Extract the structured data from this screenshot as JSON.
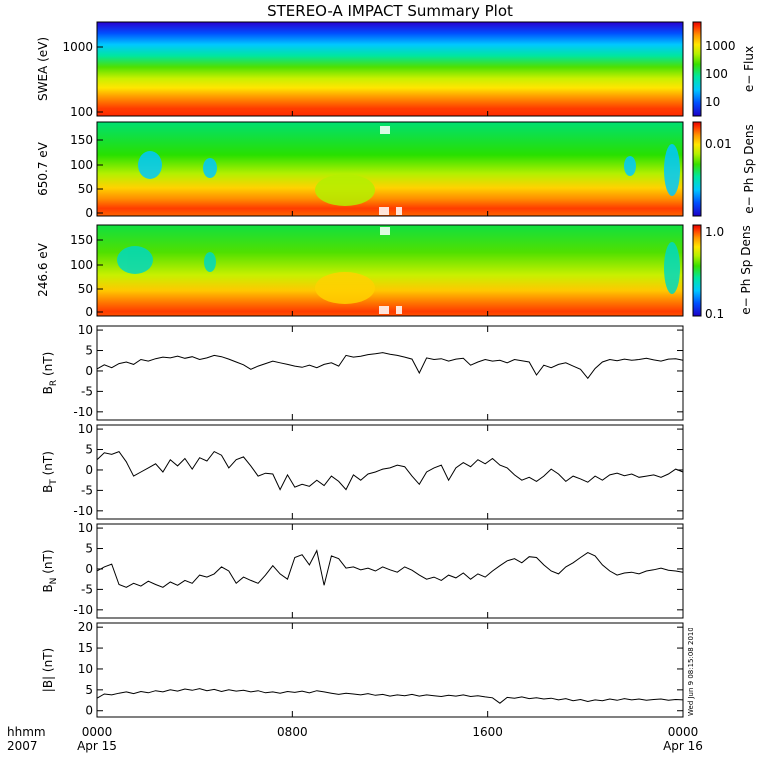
{
  "title": "STEREO-A IMPACT Summary Plot",
  "time_axis": {
    "unit_label": "hhmm",
    "year_label": "2007",
    "ticks": [
      {
        "t": 0,
        "time": "0000",
        "date": "Apr 15"
      },
      {
        "t": 8,
        "time": "0800",
        "date": ""
      },
      {
        "t": 16,
        "time": "1600",
        "date": ""
      },
      {
        "t": 24,
        "time": "0000",
        "date": "Apr 16"
      }
    ]
  },
  "stamp_text": "Wed Jun 9 08:15:08 2010",
  "spectrogram_panels": [
    {
      "ylabel": "SWEA (eV)",
      "scale": "log",
      "yticks": [
        "1000",
        "100"
      ],
      "colorbar_label": "e− Flux",
      "colorbar_ticks": [
        "1000",
        "100",
        "10"
      ]
    },
    {
      "ylabel": "650.7 eV",
      "scale": "linear",
      "yticks": [
        "150",
        "100",
        "50",
        "0"
      ],
      "colorbar_label": "e− Ph Sp Dens",
      "colorbar_ticks": [
        "0.01"
      ]
    },
    {
      "ylabel": "246.6 eV",
      "scale": "linear",
      "yticks": [
        "150",
        "100",
        "50",
        "0"
      ],
      "colorbar_label": "e− Ph Sp Dens",
      "colorbar_ticks": [
        "1.0",
        "0.1"
      ]
    }
  ],
  "colors": {
    "line": "#000000",
    "spectrum": [
      "#1e00c8",
      "#0050ff",
      "#00c8ff",
      "#00e6a0",
      "#38e000",
      "#b4f000",
      "#ffe600",
      "#ff9600",
      "#ff3c00",
      "#e60000"
    ]
  },
  "chart_data": [
    {
      "type": "line",
      "ylabel_main": "B",
      "ylabel_sub": "R",
      "ylabel_unit": " (nT)",
      "ylim": [
        -12,
        11
      ],
      "yticks": [
        -10,
        -5,
        0,
        5,
        10
      ],
      "x": [
        0,
        0.3,
        0.6,
        0.9,
        1.2,
        1.5,
        1.8,
        2.1,
        2.4,
        2.7,
        3.0,
        3.3,
        3.6,
        3.9,
        4.2,
        4.5,
        4.8,
        5.1,
        5.4,
        5.7,
        6.0,
        6.3,
        6.6,
        6.9,
        7.2,
        7.5,
        7.8,
        8.1,
        8.4,
        8.7,
        9.0,
        9.3,
        9.6,
        9.9,
        10.2,
        10.5,
        10.8,
        11.1,
        11.4,
        11.7,
        12.0,
        12.3,
        12.6,
        12.9,
        13.2,
        13.5,
        13.8,
        14.1,
        14.4,
        14.7,
        15.0,
        15.3,
        15.6,
        15.9,
        16.2,
        16.5,
        16.8,
        17.1,
        17.4,
        17.7,
        18.0,
        18.3,
        18.6,
        18.9,
        19.2,
        19.5,
        19.8,
        20.1,
        20.4,
        20.7,
        21.0,
        21.3,
        21.6,
        21.9,
        22.2,
        22.5,
        22.8,
        23.1,
        23.4,
        23.7,
        24.0
      ],
      "y": [
        0.5,
        1.5,
        0.8,
        1.8,
        2.2,
        1.6,
        2.8,
        2.4,
        3.0,
        3.4,
        3.2,
        3.6,
        3.1,
        3.5,
        2.8,
        3.2,
        3.8,
        3.5,
        2.9,
        2.2,
        1.5,
        0.4,
        1.2,
        1.8,
        2.4,
        2.0,
        1.6,
        1.2,
        0.9,
        1.4,
        0.8,
        1.6,
        2.0,
        1.2,
        3.8,
        3.4,
        3.6,
        4.0,
        4.2,
        4.5,
        4.1,
        3.8,
        3.4,
        2.9,
        -0.5,
        3.2,
        2.8,
        3.0,
        2.4,
        2.9,
        3.1,
        1.4,
        2.2,
        2.8,
        2.4,
        2.6,
        2.0,
        2.8,
        2.5,
        2.2,
        -1.0,
        1.4,
        0.8,
        1.6,
        2.0,
        1.2,
        0.4,
        -1.8,
        0.6,
        2.2,
        2.8,
        2.5,
        2.9,
        2.6,
        2.8,
        3.1,
        2.7,
        2.4,
        2.9,
        3.0,
        2.6
      ]
    },
    {
      "type": "line",
      "ylabel_main": "B",
      "ylabel_sub": "T",
      "ylabel_unit": " (nT)",
      "ylim": [
        -12,
        11
      ],
      "yticks": [
        -10,
        -5,
        0,
        5,
        10
      ],
      "x": [
        0,
        0.3,
        0.6,
        0.9,
        1.2,
        1.5,
        1.8,
        2.1,
        2.4,
        2.7,
        3.0,
        3.3,
        3.6,
        3.9,
        4.2,
        4.5,
        4.8,
        5.1,
        5.4,
        5.7,
        6.0,
        6.3,
        6.6,
        6.9,
        7.2,
        7.5,
        7.8,
        8.1,
        8.4,
        8.7,
        9.0,
        9.3,
        9.6,
        9.9,
        10.2,
        10.5,
        10.8,
        11.1,
        11.4,
        11.7,
        12.0,
        12.3,
        12.6,
        12.9,
        13.2,
        13.5,
        13.8,
        14.1,
        14.4,
        14.7,
        15.0,
        15.3,
        15.6,
        15.9,
        16.2,
        16.5,
        16.8,
        17.1,
        17.4,
        17.7,
        18.0,
        18.3,
        18.6,
        18.9,
        19.2,
        19.5,
        19.8,
        20.1,
        20.4,
        20.7,
        21.0,
        21.3,
        21.6,
        21.9,
        22.2,
        22.5,
        22.8,
        23.1,
        23.4,
        23.7,
        24.0
      ],
      "y": [
        2.5,
        4.2,
        3.8,
        4.5,
        2.0,
        -1.5,
        -0.5,
        0.5,
        1.5,
        -0.5,
        2.5,
        1.0,
        2.8,
        0.2,
        3.0,
        2.2,
        4.5,
        3.6,
        0.5,
        2.5,
        3.2,
        1.0,
        -1.5,
        -0.8,
        -1.0,
        -4.8,
        -1.2,
        -4.2,
        -3.5,
        -4.0,
        -2.5,
        -3.8,
        -1.5,
        -2.8,
        -4.8,
        -1.2,
        -2.5,
        -1.0,
        -0.5,
        0.2,
        0.5,
        1.2,
        0.8,
        -1.5,
        -3.5,
        -0.5,
        0.5,
        1.2,
        -2.5,
        0.5,
        1.8,
        0.8,
        2.5,
        1.5,
        2.8,
        1.2,
        0.5,
        -1.2,
        -2.5,
        -1.8,
        -2.8,
        -1.5,
        0.2,
        -1.0,
        -2.8,
        -1.5,
        -2.2,
        -3.0,
        -1.5,
        -2.5,
        -1.2,
        -0.8,
        -1.4,
        -1.0,
        -1.8,
        -1.5,
        -1.2,
        -1.8,
        -1.0,
        0.2,
        -0.5
      ]
    },
    {
      "type": "line",
      "ylabel_main": "B",
      "ylabel_sub": "N",
      "ylabel_unit": " (nT)",
      "ylim": [
        -12,
        11
      ],
      "yticks": [
        -10,
        -5,
        0,
        5,
        10
      ],
      "x": [
        0,
        0.3,
        0.6,
        0.9,
        1.2,
        1.5,
        1.8,
        2.1,
        2.4,
        2.7,
        3.0,
        3.3,
        3.6,
        3.9,
        4.2,
        4.5,
        4.8,
        5.1,
        5.4,
        5.7,
        6.0,
        6.3,
        6.6,
        6.9,
        7.2,
        7.5,
        7.8,
        8.1,
        8.4,
        8.7,
        9.0,
        9.3,
        9.6,
        9.9,
        10.2,
        10.5,
        10.8,
        11.1,
        11.4,
        11.7,
        12.0,
        12.3,
        12.6,
        12.9,
        13.2,
        13.5,
        13.8,
        14.1,
        14.4,
        14.7,
        15.0,
        15.3,
        15.6,
        15.9,
        16.2,
        16.5,
        16.8,
        17.1,
        17.4,
        17.7,
        18.0,
        18.3,
        18.6,
        18.9,
        19.2,
        19.5,
        19.8,
        20.1,
        20.4,
        20.7,
        21.0,
        21.3,
        21.6,
        21.9,
        22.2,
        22.5,
        22.8,
        23.1,
        23.4,
        23.7,
        24.0
      ],
      "y": [
        -0.5,
        0.5,
        1.2,
        -3.8,
        -4.5,
        -3.5,
        -4.2,
        -3.0,
        -3.8,
        -4.5,
        -3.2,
        -4.0,
        -2.8,
        -3.5,
        -1.5,
        -2.0,
        -1.2,
        0.5,
        -0.5,
        -3.5,
        -2.0,
        -2.8,
        -3.5,
        -1.5,
        0.8,
        -1.2,
        -2.5,
        2.8,
        3.5,
        1.0,
        4.5,
        -4.0,
        3.2,
        2.5,
        0.2,
        0.5,
        -0.2,
        0.2,
        -0.5,
        0.5,
        -0.2,
        -0.8,
        0.5,
        -0.3,
        -1.5,
        -2.5,
        -2.0,
        -2.8,
        -1.5,
        -2.2,
        -1.0,
        -2.5,
        -1.2,
        -2.0,
        -0.5,
        0.8,
        2.0,
        2.5,
        1.5,
        3.0,
        2.8,
        1.0,
        -0.5,
        -1.2,
        0.5,
        1.5,
        2.8,
        4.0,
        3.2,
        1.0,
        -0.5,
        -1.5,
        -1.0,
        -0.8,
        -1.2,
        -0.5,
        -0.2,
        0.2,
        -0.3,
        -0.5,
        -0.8
      ]
    },
    {
      "type": "line",
      "ylabel_main": "|B|",
      "ylabel_sub": "",
      "ylabel_unit": " (nT)",
      "ylim": [
        -1.5,
        21
      ],
      "yticks": [
        0,
        5,
        10,
        15,
        20
      ],
      "x": [
        0,
        0.3,
        0.6,
        0.9,
        1.2,
        1.5,
        1.8,
        2.1,
        2.4,
        2.7,
        3.0,
        3.3,
        3.6,
        3.9,
        4.2,
        4.5,
        4.8,
        5.1,
        5.4,
        5.7,
        6.0,
        6.3,
        6.6,
        6.9,
        7.2,
        7.5,
        7.8,
        8.1,
        8.4,
        8.7,
        9.0,
        9.3,
        9.6,
        9.9,
        10.2,
        10.5,
        10.8,
        11.1,
        11.4,
        11.7,
        12.0,
        12.3,
        12.6,
        12.9,
        13.2,
        13.5,
        13.8,
        14.1,
        14.4,
        14.7,
        15.0,
        15.3,
        15.6,
        15.9,
        16.2,
        16.5,
        16.8,
        17.1,
        17.4,
        17.7,
        18.0,
        18.3,
        18.6,
        18.9,
        19.2,
        19.5,
        19.8,
        20.1,
        20.4,
        20.7,
        21.0,
        21.3,
        21.6,
        21.9,
        22.2,
        22.5,
        22.8,
        23.1,
        23.4,
        23.7,
        24.0
      ],
      "y": [
        3.0,
        4.0,
        3.8,
        4.2,
        4.5,
        4.1,
        4.6,
        4.3,
        4.8,
        4.5,
        5.0,
        4.7,
        5.2,
        4.9,
        5.3,
        4.8,
        5.1,
        4.6,
        5.0,
        4.7,
        4.9,
        4.5,
        4.8,
        4.3,
        4.5,
        4.2,
        4.6,
        4.4,
        4.7,
        4.3,
        4.8,
        4.5,
        4.2,
        3.9,
        4.2,
        4.0,
        3.8,
        4.1,
        3.7,
        3.9,
        3.5,
        3.8,
        3.6,
        3.9,
        3.5,
        3.8,
        3.6,
        3.4,
        3.7,
        3.5,
        3.8,
        3.4,
        3.6,
        3.3,
        3.1,
        1.8,
        3.2,
        3.0,
        3.3,
        2.9,
        3.1,
        2.8,
        3.0,
        2.6,
        2.9,
        2.4,
        2.7,
        2.2,
        2.6,
        2.4,
        2.8,
        2.5,
        2.9,
        2.6,
        2.8,
        2.5,
        2.7,
        2.8,
        2.5,
        2.7,
        2.6
      ]
    }
  ]
}
